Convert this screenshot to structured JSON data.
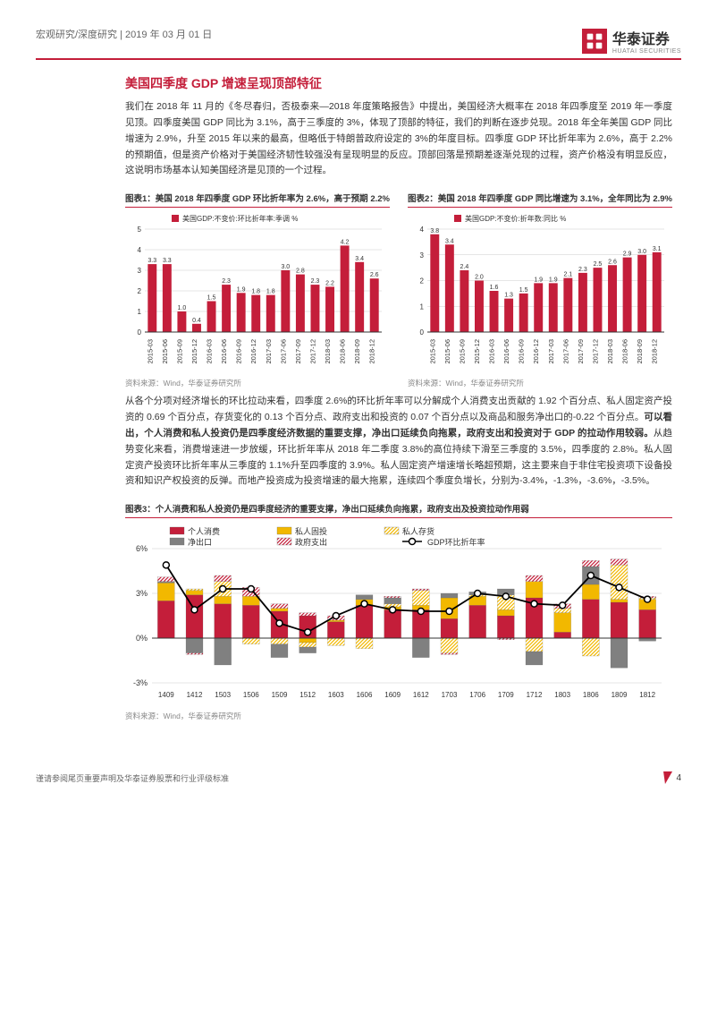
{
  "header": {
    "category": "宏观研究/深度研究",
    "date": "2019 年 03 月 01 日",
    "company": "华泰证券",
    "company_en": "HUATAI SECURITIES"
  },
  "section_title": "美国四季度 GDP 增速呈现顶部特征",
  "para1": "我们在 2018 年 11 月的《冬尽春归，否极泰来—2018 年度策略报告》中提出，美国经济大概率在 2018 年四季度至 2019 年一季度见顶。四季度美国 GDP 同比为 3.1%，高于三季度的 3%，体现了顶部的特征，我们的判断在逐步兑现。2018 年全年美国 GDP 同比增速为 2.9%，升至 2015 年以来的最高，但略低于特朗普政府设定的 3%的年度目标。四季度 GDP 环比折年率为 2.6%，高于 2.2%的预期值，但是资产价格对于美国经济韧性较强没有呈现明显的反应。顶部回落是预期差逐渐兑现的过程，资产价格没有明显反应，这说明市场基本认知美国经济是见顶的一个过程。",
  "para2_a": "从各个分项对经济增长的环比拉动来看，四季度 2.6%的环比折年率可以分解成个人消费支出贡献的 1.92 个百分点、私人固定资产投资的 0.69 个百分点，存货变化的 0.13 个百分点、政府支出和投资的 0.07 个百分点以及商品和服务净出口的-0.22 个百分点。",
  "para2_bold": "可以看出，个人消费和私人投资仍是四季度经济数据的重要支撑，净出口延续负向拖累，政府支出和投资对于 GDP 的拉动作用较弱。",
  "para2_b": "从趋势变化来看，消费增速进一步放缓，环比折年率从 2018 年二季度 3.8%的高位持续下滑至三季度的 3.5%，四季度的 2.8%。私人固定资产投资环比折年率从三季度的 1.1%升至四季度的 3.9%。私人固定资产增速增长略超预期，这主要来自于非住宅投资项下设备投资和知识产权投资的反弹。而地产投资成为投资增速的最大拖累，连续四个季度负增长，分别为-3.4%，-1.3%，-3.6%，-3.5%。",
  "chart1": {
    "title": "图表1：美国 2018 年四季度 GDP 环比折年率为 2.6%，高于预期 2.2%",
    "type": "bar",
    "legend": "美国GDP:不变价:环比折年率:季调 %",
    "categories": [
      "2015-03",
      "2015-06",
      "2015-09",
      "2015-12",
      "2016-03",
      "2016-06",
      "2016-09",
      "2016-12",
      "2017-03",
      "2017-06",
      "2017-09",
      "2017-12",
      "2018-03",
      "2018-06",
      "2018-09",
      "2018-12"
    ],
    "values": [
      3.3,
      3.3,
      1.0,
      0.4,
      1.5,
      2.3,
      1.9,
      1.8,
      1.8,
      3.0,
      2.8,
      2.3,
      2.2,
      4.2,
      3.4,
      2.6
    ],
    "ylim": [
      0,
      5
    ],
    "ytick_step": 1,
    "bar_color": "#c41e3a",
    "grid_color": "#cccccc",
    "label_fontsize": 8,
    "source": "资料来源：Wind，华泰证券研究所"
  },
  "chart2": {
    "title": "图表2：美国 2018 年四季度 GDP 同比增速为 3.1%，全年同比为 2.9%",
    "type": "bar",
    "legend": "美国GDP:不变价:折年数:同比 %",
    "categories": [
      "2015-03",
      "2015-06",
      "2015-09",
      "2015-12",
      "2016-03",
      "2016-06",
      "2016-09",
      "2016-12",
      "2017-03",
      "2017-06",
      "2017-09",
      "2017-12",
      "2018-03",
      "2018-06",
      "2018-09",
      "2018-12"
    ],
    "values": [
      3.8,
      3.4,
      2.4,
      2.0,
      1.6,
      1.3,
      1.5,
      1.9,
      1.9,
      2.1,
      2.3,
      2.5,
      2.6,
      2.9,
      3.0,
      3.1
    ],
    "ylim": [
      0,
      4
    ],
    "ytick_step": 1,
    "bar_color": "#c41e3a",
    "grid_color": "#cccccc",
    "label_fontsize": 8,
    "source": "资料来源：Wind，华泰证券研究所"
  },
  "chart3": {
    "title": "图表3：个人消费和私人投资仍是四季度经济的重要支撑，净出口延续负向拖累，政府支出及投资拉动作用弱",
    "type": "stacked_bar_line",
    "legend": {
      "consume": "个人消费",
      "fixed": "私人固投",
      "inventory": "私人存货",
      "netexp": "净出口",
      "gov": "政府支出",
      "gdp": "GDP环比折年率"
    },
    "colors": {
      "consume": "#c41e3a",
      "fixed": "#f2b800",
      "inventory_pattern": "#f2b800",
      "netexp": "#808080",
      "gov_pattern": "#c41e3a",
      "gdp_line": "#000000"
    },
    "categories": [
      "1409",
      "1412",
      "1503",
      "1506",
      "1509",
      "1512",
      "1603",
      "1606",
      "1609",
      "1612",
      "1703",
      "1706",
      "1709",
      "1712",
      "1803",
      "1806",
      "1809",
      "1812"
    ],
    "series": {
      "consume": [
        2.5,
        2.9,
        2.3,
        2.2,
        1.8,
        1.5,
        1.1,
        2.2,
        1.9,
        1.9,
        1.3,
        2.2,
        1.5,
        2.7,
        0.4,
        2.6,
        2.4,
        1.9
      ],
      "fixed": [
        1.2,
        0.3,
        0.5,
        0.6,
        0.2,
        -0.3,
        0.1,
        0.4,
        0.2,
        0.3,
        1.4,
        0.6,
        0.4,
        1.1,
        1.3,
        1.0,
        0.2,
        0.7
      ],
      "inventory": [
        0.0,
        0.1,
        1.0,
        -0.4,
        -0.4,
        -0.3,
        -0.5,
        -0.7,
        0.2,
        1.0,
        -1.0,
        0.1,
        1.0,
        -0.9,
        0.3,
        -1.2,
        2.3,
        0.1
      ],
      "netexp": [
        0.1,
        -1.0,
        -1.8,
        0.0,
        -0.9,
        -0.4,
        0.0,
        0.3,
        0.4,
        -1.3,
        0.3,
        0.2,
        0.4,
        -0.9,
        0.0,
        1.2,
        -2.0,
        -0.2
      ],
      "gov": [
        0.3,
        -0.1,
        0.4,
        0.6,
        0.3,
        0.2,
        0.3,
        0.0,
        0.1,
        0.1,
        -0.1,
        0.0,
        -0.1,
        0.4,
        0.3,
        0.4,
        0.4,
        0.1
      ],
      "gdp": [
        4.9,
        1.9,
        3.3,
        3.3,
        1.0,
        0.4,
        1.5,
        2.3,
        1.9,
        1.8,
        1.8,
        3.0,
        2.8,
        2.3,
        2.2,
        4.2,
        3.4,
        2.6
      ]
    },
    "ylim": [
      -3,
      6
    ],
    "ytick_step": 3,
    "grid_color": "#cccccc",
    "source": "资料来源：Wind，华泰证券研究所"
  },
  "footer": {
    "disclaimer": "谨请参阅尾页重要声明及华泰证券股票和行业评级标准",
    "page": "4"
  }
}
